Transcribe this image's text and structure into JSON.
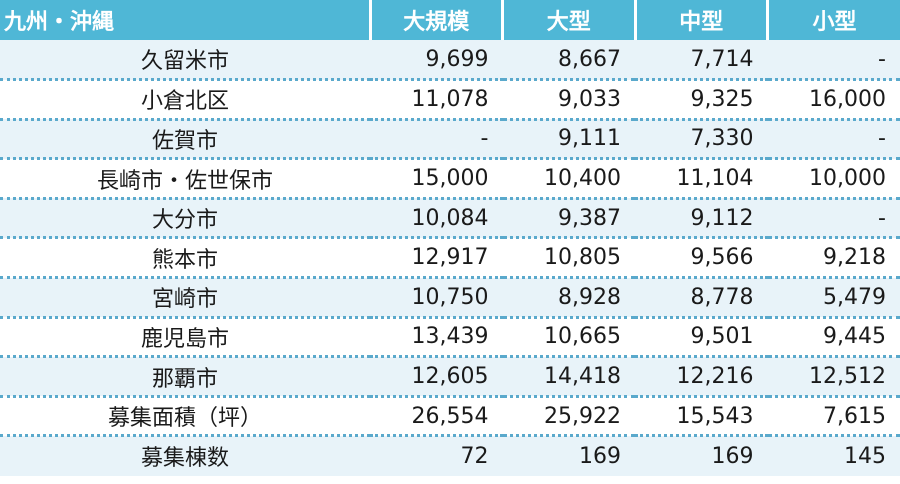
{
  "columns": {
    "region": "九州・沖縄",
    "large_scale": "大規模",
    "large": "大型",
    "medium": "中型",
    "small": "小型"
  },
  "rows": [
    {
      "name": "久留米市",
      "large_scale": "9,699",
      "large": "8,667",
      "medium": "7,714",
      "small": "-"
    },
    {
      "name": "小倉北区",
      "large_scale": "11,078",
      "large": "9,033",
      "medium": "9,325",
      "small": "16,000"
    },
    {
      "name": "佐賀市",
      "large_scale": "-",
      "large": "9,111",
      "medium": "7,330",
      "small": "-"
    },
    {
      "name": "長崎市・佐世保市",
      "large_scale": "15,000",
      "large": "10,400",
      "medium": "11,104",
      "small": "10,000"
    },
    {
      "name": "大分市",
      "large_scale": "10,084",
      "large": "9,387",
      "medium": "9,112",
      "small": "-"
    },
    {
      "name": "熊本市",
      "large_scale": "12,917",
      "large": "10,805",
      "medium": "9,566",
      "small": "9,218"
    },
    {
      "name": "宮崎市",
      "large_scale": "10,750",
      "large": "8,928",
      "medium": "8,778",
      "small": "5,479"
    },
    {
      "name": "鹿児島市",
      "large_scale": "13,439",
      "large": "10,665",
      "medium": "9,501",
      "small": "9,445"
    },
    {
      "name": "那覇市",
      "large_scale": "12,605",
      "large": "14,418",
      "medium": "12,216",
      "small": "12,512"
    },
    {
      "name": "募集面積（坪）",
      "large_scale": "26,554",
      "large": "25,922",
      "medium": "15,543",
      "small": "7,615"
    },
    {
      "name": "募集棟数",
      "large_scale": "72",
      "large": "169",
      "medium": "169",
      "small": "145"
    }
  ]
}
